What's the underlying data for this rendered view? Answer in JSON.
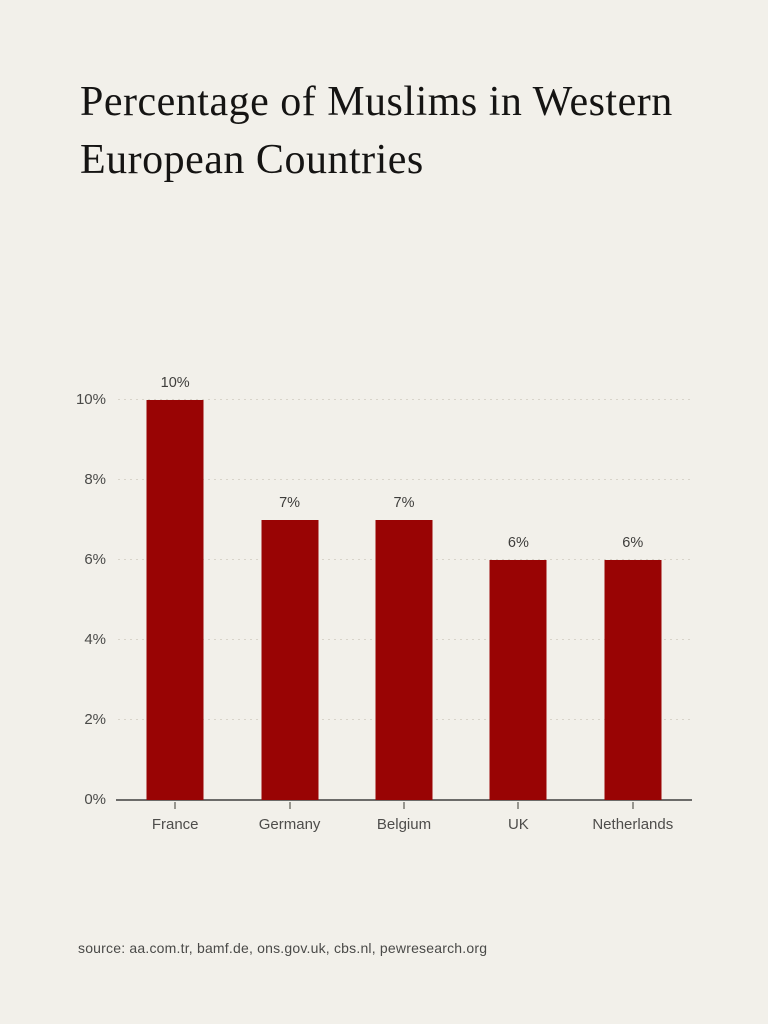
{
  "page": {
    "background": "#F2F0EA",
    "title": "Percentage of Muslims in Western European Countries",
    "source": "source: aa.com.tr, bamf.de, ons.gov.uk, cbs.nl, pewresearch.org"
  },
  "chart_data": {
    "type": "bar",
    "title": "Percentage of Muslims in Western European Countries",
    "categories": [
      "France",
      "Germany",
      "Belgium",
      "UK",
      "Netherlands"
    ],
    "values": [
      10,
      7,
      7,
      6,
      6
    ],
    "value_labels": [
      "10%",
      "7%",
      "7%",
      "6%",
      "6%"
    ],
    "xlabel": "",
    "ylabel": "",
    "ylim": [
      0,
      10
    ],
    "yticks": [
      0,
      2,
      4,
      6,
      8,
      10
    ],
    "ytick_labels": [
      "0%",
      "2%",
      "4%",
      "6%",
      "8%",
      "10%"
    ],
    "grid": "horizontal-dotted",
    "legend_position": "none",
    "bar_color": "#990404",
    "axis_color": "#6C6B69",
    "source": "source: aa.com.tr, bamf.de, ons.gov.uk, cbs.nl, pewresearch.org"
  }
}
